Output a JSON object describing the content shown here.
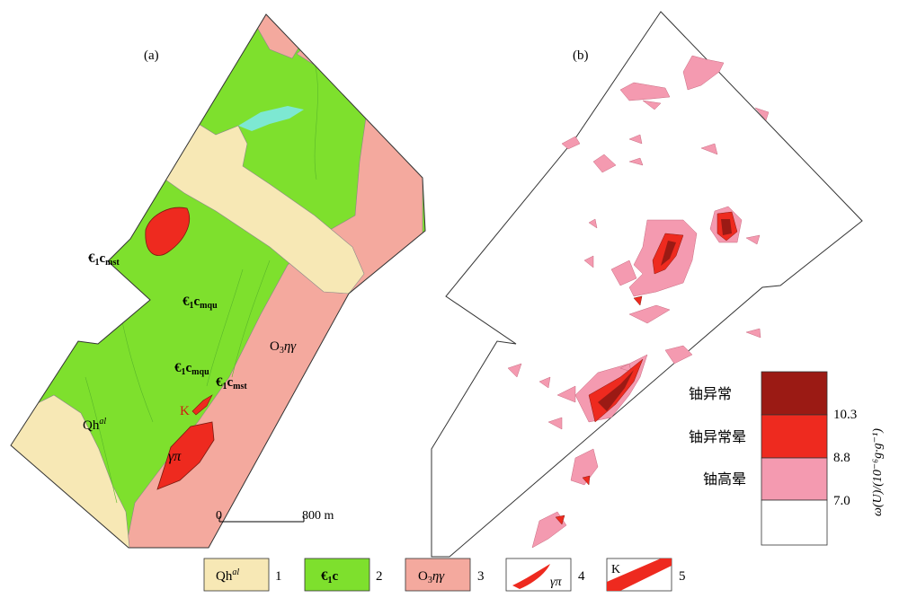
{
  "panels": {
    "a": {
      "label": "(a)"
    },
    "b": {
      "label": "(b)"
    }
  },
  "map_a": {
    "unit_labels": {
      "e1c_mst_upper": {
        "main": "€",
        "sub1": "1",
        "mid": "c",
        "sub2": "mst"
      },
      "e1c_mqu_upper": {
        "main": "€",
        "sub1": "1",
        "mid": "c",
        "sub2": "mqu"
      },
      "e1c_mqu_lower": {
        "main": "€",
        "sub1": "1",
        "mid": "c",
        "sub2": "mqu"
      },
      "e1c_mst_lower": {
        "main": "€",
        "sub1": "1",
        "mid": "c",
        "sub2": "mst"
      },
      "o3": {
        "main": "O",
        "sub": "3",
        "rest": "ηγ"
      },
      "qh": {
        "main": "Qh",
        "sup": "al"
      },
      "k": "K",
      "gamma_pi": "γπ"
    },
    "scale_bar": {
      "start": "0",
      "end": "800 m"
    },
    "colors": {
      "quaternary": "#f7e8b5",
      "cambrian": "#7ee02d",
      "ordovician": "#f4a99e",
      "intrusion": "#ee2a1f",
      "water": "#7de8d2"
    }
  },
  "map_b": {
    "scale": {
      "axis_label": "ω(U)/(10⁻⁶g·g⁻¹)",
      "classes": [
        {
          "name": "铀异常",
          "color": "#9b1a14"
        },
        {
          "name": "铀异常晕",
          "color": "#ee2a1f"
        },
        {
          "name": "铀高晕",
          "color": "#f49ab0"
        },
        {
          "name": "",
          "color": "#ffffff"
        }
      ],
      "thresholds": [
        "10.3",
        "8.8",
        "7.0"
      ]
    }
  },
  "legend": {
    "items": [
      {
        "num": "1",
        "symbol_text": "Qh",
        "symbol_sup": "al",
        "color": "#f7e8b5"
      },
      {
        "num": "2",
        "symbol_text": "€",
        "symbol_sub": "1",
        "symbol_rest": "c",
        "color": "#7ee02d"
      },
      {
        "num": "3",
        "symbol_text": "O",
        "symbol_sub": "3",
        "symbol_rest": "ηγ",
        "color": "#f4a99e"
      },
      {
        "num": "4",
        "symbol_text": "γπ",
        "color": "#ee2a1f"
      },
      {
        "num": "5",
        "symbol_text": "K",
        "color": "#ee2a1f"
      }
    ]
  }
}
